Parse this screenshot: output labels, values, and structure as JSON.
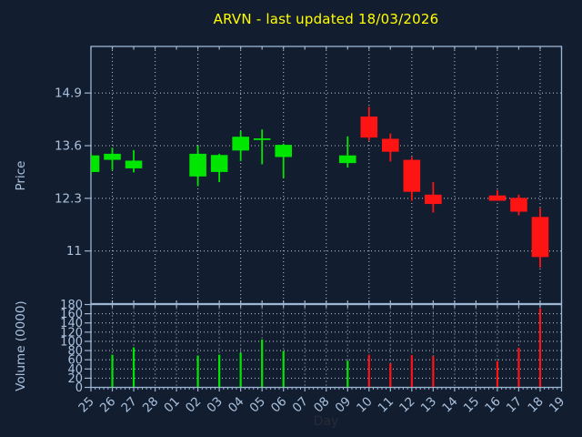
{
  "title": "ARVN - last updated 18/03/2026",
  "colors": {
    "background": "#131d30",
    "title": "#ffff00",
    "axis_spine": "#9db6d4",
    "tick_label": "#a9c1dd",
    "grid": "#b4b9c2",
    "up": "#00e600",
    "down": "#ff1414",
    "xlabel_text": "#262b36"
  },
  "chart_data": {
    "type": "candlestick",
    "title": "ARVN - last updated 18/03/2026",
    "xlabel": "Day",
    "x_labels": [
      "25",
      "26",
      "27",
      "28",
      "01",
      "02",
      "03",
      "04",
      "05",
      "06",
      "07",
      "08",
      "09",
      "10",
      "11",
      "12",
      "13",
      "14",
      "15",
      "16",
      "17",
      "18",
      "19"
    ],
    "price_panel": {
      "ylabel": "Price",
      "yticks": [
        11,
        12.3,
        13.6,
        14.9
      ],
      "ylim": [
        9.7,
        16.05
      ],
      "grid": true
    },
    "volume_panel": {
      "ylabel": "Volume (0000)",
      "yticks": [
        0,
        20,
        40,
        60,
        80,
        100,
        120,
        140,
        160,
        180
      ],
      "ylim": [
        0,
        180
      ],
      "grid": true
    },
    "legend": null,
    "series": [
      {
        "day": "25",
        "x_index": 0,
        "open": 12.95,
        "high": 13.4,
        "low": 12.9,
        "close": 13.36,
        "direction": "up",
        "volume": 0
      },
      {
        "day": "26",
        "x_index": 1,
        "open": 13.25,
        "high": 13.55,
        "low": 13.0,
        "close": 13.4,
        "direction": "up",
        "volume": 71
      },
      {
        "day": "27",
        "x_index": 2,
        "open": 13.04,
        "high": 13.49,
        "low": 12.94,
        "close": 13.23,
        "direction": "up",
        "volume": 87
      },
      {
        "day": "02",
        "x_index": 5,
        "open": 12.84,
        "high": 13.6,
        "low": 12.6,
        "close": 13.4,
        "direction": "up",
        "volume": 69
      },
      {
        "day": "03",
        "x_index": 6,
        "open": 12.95,
        "high": 13.4,
        "low": 12.7,
        "close": 13.37,
        "direction": "up",
        "volume": 71
      },
      {
        "day": "04",
        "x_index": 7,
        "open": 13.48,
        "high": 13.96,
        "low": 13.22,
        "close": 13.82,
        "direction": "up",
        "volume": 75
      },
      {
        "day": "05",
        "x_index": 8,
        "open": 13.74,
        "high": 14.0,
        "low": 13.14,
        "close": 13.78,
        "direction": "up",
        "volume": 104
      },
      {
        "day": "06",
        "x_index": 9,
        "open": 13.32,
        "high": 13.65,
        "low": 12.8,
        "close": 13.62,
        "direction": "up",
        "volume": 79
      },
      {
        "day": "09",
        "x_index": 12,
        "open": 13.17,
        "high": 13.83,
        "low": 13.06,
        "close": 13.36,
        "direction": "up",
        "volume": 58
      },
      {
        "day": "10",
        "x_index": 13,
        "open": 14.32,
        "high": 14.56,
        "low": 13.72,
        "close": 13.8,
        "direction": "down",
        "volume": 71
      },
      {
        "day": "11",
        "x_index": 14,
        "open": 13.77,
        "high": 13.9,
        "low": 13.21,
        "close": 13.45,
        "direction": "down",
        "volume": 52
      },
      {
        "day": "12",
        "x_index": 15,
        "open": 13.25,
        "high": 13.32,
        "low": 12.24,
        "close": 12.46,
        "direction": "down",
        "volume": 70
      },
      {
        "day": "13",
        "x_index": 16,
        "open": 12.39,
        "high": 12.7,
        "low": 11.95,
        "close": 12.16,
        "direction": "down",
        "volume": 68
      },
      {
        "day": "16",
        "x_index": 19,
        "open": 12.37,
        "high": 12.5,
        "low": 12.24,
        "close": 12.24,
        "direction": "down",
        "volume": 57
      },
      {
        "day": "17",
        "x_index": 20,
        "open": 12.31,
        "high": 12.39,
        "low": 11.88,
        "close": 11.97,
        "direction": "down",
        "volume": 86
      },
      {
        "day": "18",
        "x_index": 21,
        "open": 11.84,
        "high": 12.06,
        "low": 10.59,
        "close": 10.85,
        "direction": "down",
        "volume": 172
      }
    ]
  }
}
